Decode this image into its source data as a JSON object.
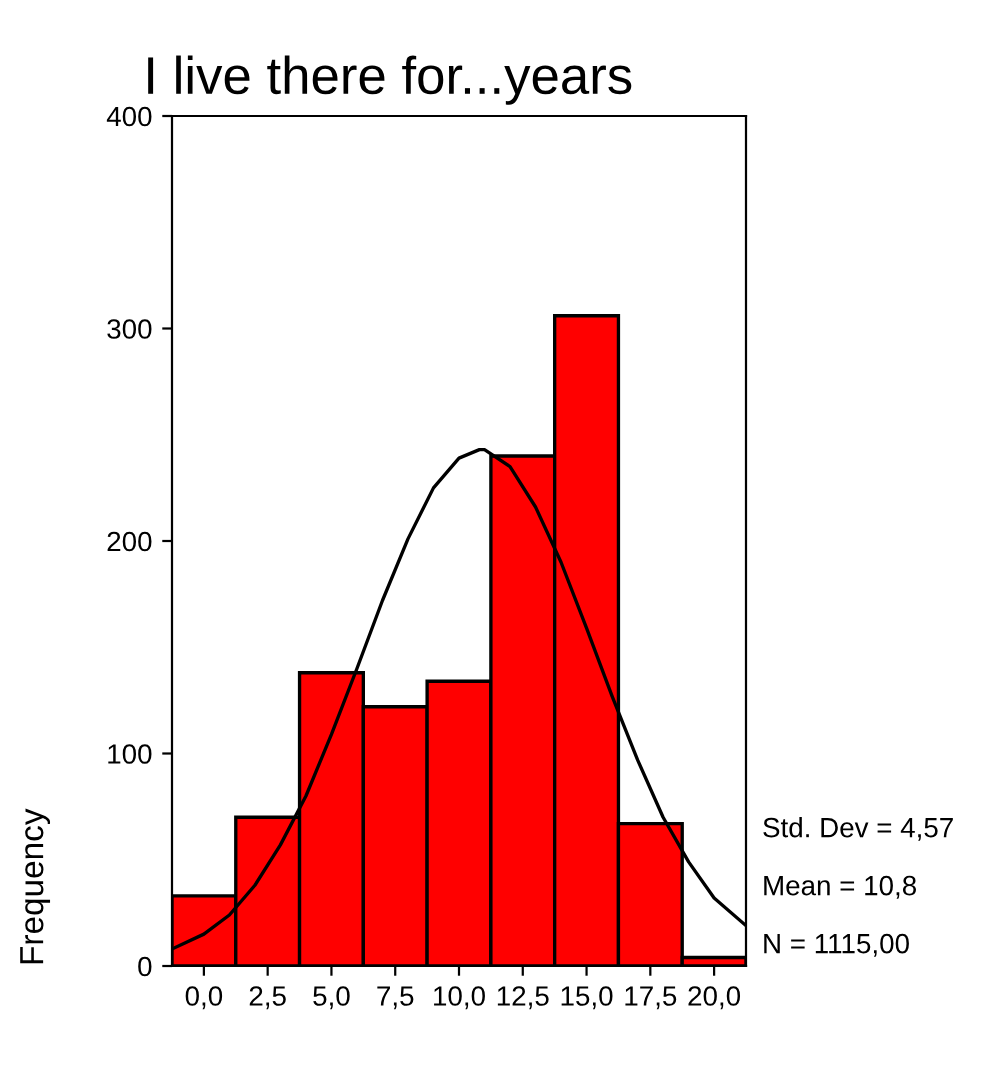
{
  "chart_data": {
    "type": "histogram",
    "title": "I live there for...years",
    "ylabel": "Frequency",
    "bins": [
      -1.25,
      1.25,
      3.75,
      6.25,
      8.75,
      11.25,
      13.75,
      16.25,
      18.75,
      21.25
    ],
    "values": [
      33,
      70,
      138,
      122,
      134,
      240,
      306,
      67,
      4
    ],
    "color": "#ff0000",
    "series": [
      {
        "type": "line",
        "color": "#000000",
        "x": [
          -1.25,
          0,
          1,
          2,
          3,
          4,
          5,
          6,
          7,
          8,
          9,
          10,
          10.8,
          11,
          12,
          13,
          14,
          15,
          16,
          17,
          18,
          19,
          20,
          21.25
        ],
        "values": [
          8,
          15,
          24,
          38,
          57,
          80,
          109,
          140,
          172,
          201,
          225,
          239,
          243,
          243,
          235,
          216,
          190,
          159,
          127,
          97,
          70,
          49,
          32,
          19
        ]
      }
    ],
    "xlim": [
      -1.25,
      21.25
    ],
    "ylim": [
      0,
      400
    ],
    "xticks": [
      {
        "value": 0,
        "label": "0,0"
      },
      {
        "value": 2.5,
        "label": "2,5"
      },
      {
        "value": 5,
        "label": "5,0"
      },
      {
        "value": 7.5,
        "label": "7,5"
      },
      {
        "value": 10,
        "label": "10,0"
      },
      {
        "value": 12.5,
        "label": "12,5"
      },
      {
        "value": 15,
        "label": "15,0"
      },
      {
        "value": 17.5,
        "label": "17,5"
      },
      {
        "value": 20,
        "label": "20,0"
      }
    ],
    "yticks": [
      0,
      100,
      200,
      300,
      400
    ],
    "annotations": [
      "Std. Dev = 4,57",
      "Mean = 10,8",
      "N = 1115,00"
    ],
    "grid": false,
    "legend": false
  }
}
